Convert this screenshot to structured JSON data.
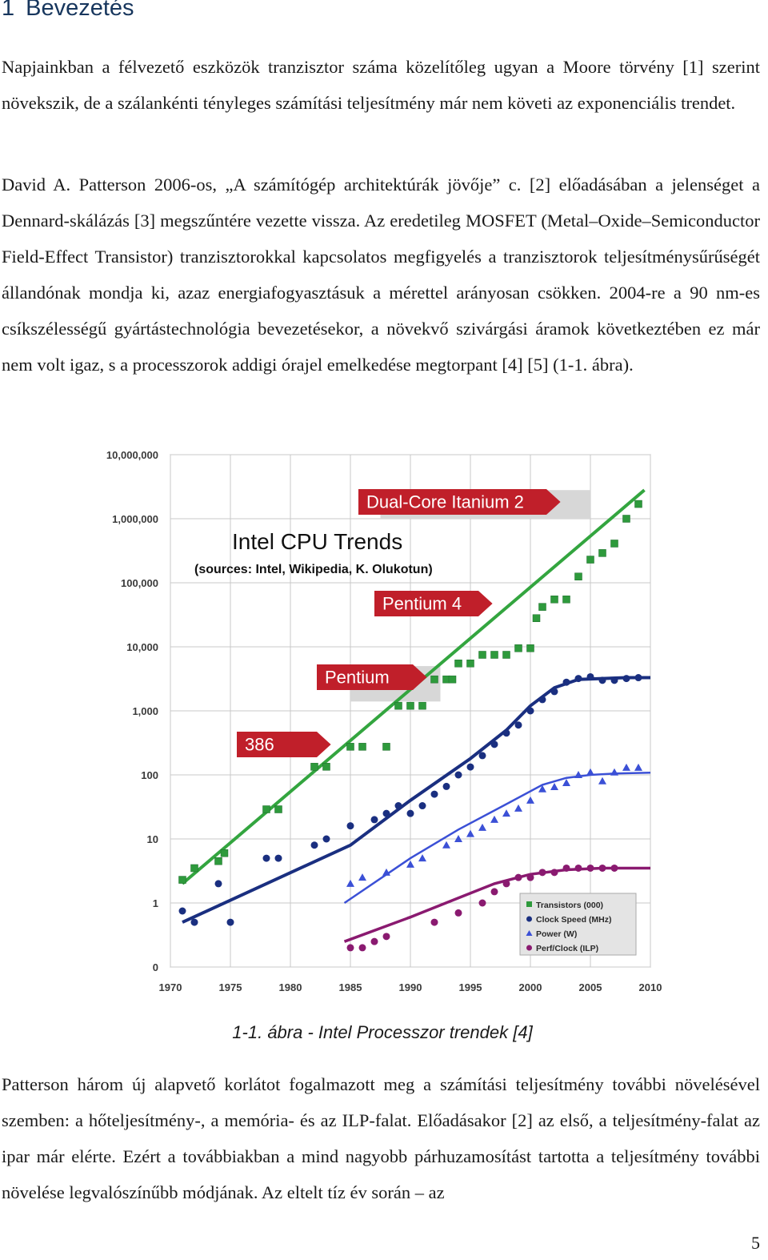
{
  "heading": {
    "number": "1",
    "title": "Bevezetés"
  },
  "paragraphs": {
    "p1": "Napjainkban a félvezető eszközök tranzisztor száma közelítőleg ugyan a Moore törvény [1] szerint növekszik, de a szálankénti tényleges számítási teljesítmény már nem követi az exponenciális trendet.",
    "p2": "David A. Patterson 2006-os, „A számítógép architektúrák jövője” c. [2] előadásában a jelenséget a Dennard-skálázás [3] megszűntére vezette vissza. Az eredetileg MOSFET (Metal–Oxide–Semiconductor Field-Effect Transistor) tranzisztorokkal kapcsolatos megfigyelés a tranzisztorok teljesítménysűrűségét állandónak mondja ki, azaz energiafogyasztásuk a mérettel arányosan csökken. 2004-re a 90 nm-es csíkszélességű gyártástechnológia bevezetésekor, a növekvő szivárgási áramok következtében ez már nem volt igaz, s a processzorok addigi órajel emelkedése megtorpant [4] [5] (1-1. ábra).",
    "p3": "Patterson három új alapvető korlátot fogalmazott meg a számítási teljesítmény további növelésével szemben: a hőteljesítmény-, a memória- és az ILP-falat. Előadásakor [2] az első, a teljesítmény-falat az ipar már elérte. Ezért a továbbiakban a mind nagyobb párhuzamosítást tartotta a teljesítmény további növelése legvalószínűbb módjának. Az eltelt tíz év során – az"
  },
  "caption": "1-1. ábra - Intel Processzor trendek [4]",
  "page_number": "5",
  "chart_data": {
    "type": "scatter",
    "title": "Intel CPU Trends",
    "subtitle": "(sources: Intel, Wikipedia, K. Olukotun)",
    "xlabel": "",
    "ylabel": "",
    "scale": "log",
    "xlim": [
      1970,
      2010
    ],
    "ylim": [
      0,
      10000000
    ],
    "x_ticks": [
      "1970",
      "1975",
      "1980",
      "1985",
      "1990",
      "1995",
      "2000",
      "2005",
      "2010"
    ],
    "y_ticks": [
      "0",
      "1",
      "10",
      "100",
      "1,000",
      "10,000",
      "100,000",
      "1,000,000",
      "10,000,000"
    ],
    "grid": true,
    "legend_position": "bottom-right",
    "annotations": [
      {
        "text": "386",
        "x": 1985
      },
      {
        "text": "Pentium",
        "x": 1993
      },
      {
        "text": "Pentium 4",
        "x": 2000
      },
      {
        "text": "Dual-Core Itanium 2",
        "x": 2006
      }
    ],
    "colors": {
      "transistors": "#2e9a3c",
      "transistors_fit": "#33a53f",
      "clock": "#1a2f80",
      "power": "#3b50d6",
      "perf": "#8a1a70",
      "label_red": "#c01f2a",
      "band_gray": "#d7d7d7"
    },
    "series": [
      {
        "name": "Transistors (000)",
        "marker": "square",
        "points": [
          [
            1971,
            2.3
          ],
          [
            1972,
            3.5
          ],
          [
            1974,
            4.5
          ],
          [
            1974.5,
            6
          ],
          [
            1978,
            29
          ],
          [
            1979,
            29
          ],
          [
            1982,
            134
          ],
          [
            1983,
            134
          ],
          [
            1985,
            275
          ],
          [
            1986,
            275
          ],
          [
            1988,
            275
          ],
          [
            1989,
            1200
          ],
          [
            1990,
            1200
          ],
          [
            1991,
            1200
          ],
          [
            1992,
            3100
          ],
          [
            1993,
            3100
          ],
          [
            1993.5,
            3100
          ],
          [
            1994,
            5500
          ],
          [
            1995,
            5500
          ],
          [
            1996,
            7500
          ],
          [
            1997,
            7500
          ],
          [
            1998,
            7500
          ],
          [
            1999,
            9500
          ],
          [
            2000,
            9500
          ],
          [
            2000.5,
            28000
          ],
          [
            2001,
            42000
          ],
          [
            2002,
            55000
          ],
          [
            2003,
            55000
          ],
          [
            2004,
            125000
          ],
          [
            2005,
            230000
          ],
          [
            2006,
            291000
          ],
          [
            2007,
            410000
          ],
          [
            2008,
            1000000
          ],
          [
            2009,
            1700000
          ]
        ]
      },
      {
        "name": "Clock Speed (MHz)",
        "marker": "circle",
        "points": [
          [
            1971,
            0.75
          ],
          [
            1972,
            0.5
          ],
          [
            1974,
            2
          ],
          [
            1975,
            0.5
          ],
          [
            1978,
            5
          ],
          [
            1979,
            5
          ],
          [
            1982,
            8
          ],
          [
            1983,
            10
          ],
          [
            1985,
            16
          ],
          [
            1987,
            20
          ],
          [
            1988,
            25
          ],
          [
            1989,
            33
          ],
          [
            1990,
            25
          ],
          [
            1991,
            33
          ],
          [
            1992,
            50
          ],
          [
            1993,
            66
          ],
          [
            1994,
            100
          ],
          [
            1995,
            133
          ],
          [
            1996,
            200
          ],
          [
            1997,
            300
          ],
          [
            1998,
            450
          ],
          [
            1999,
            600
          ],
          [
            2000,
            1000
          ],
          [
            2001,
            1500
          ],
          [
            2002,
            2000
          ],
          [
            2003,
            2800
          ],
          [
            2004,
            3200
          ],
          [
            2005,
            3400
          ],
          [
            2006,
            3000
          ],
          [
            2007,
            3000
          ],
          [
            2008,
            3200
          ],
          [
            2009,
            3300
          ]
        ]
      },
      {
        "name": "Power (W)",
        "marker": "triangle",
        "points": [
          [
            1985,
            2
          ],
          [
            1986,
            2.5
          ],
          [
            1988,
            3
          ],
          [
            1990,
            4
          ],
          [
            1991,
            5
          ],
          [
            1993,
            8
          ],
          [
            1994,
            10
          ],
          [
            1995,
            12
          ],
          [
            1996,
            15
          ],
          [
            1997,
            20
          ],
          [
            1998,
            25
          ],
          [
            1999,
            30
          ],
          [
            2000,
            40
          ],
          [
            2001,
            60
          ],
          [
            2002,
            65
          ],
          [
            2003,
            75
          ],
          [
            2004,
            100
          ],
          [
            2005,
            110
          ],
          [
            2006,
            80
          ],
          [
            2007,
            110
          ],
          [
            2008,
            130
          ],
          [
            2009,
            130
          ]
        ]
      },
      {
        "name": "Perf/Clock (ILP)",
        "marker": "circle",
        "points": [
          [
            1985,
            0.2
          ],
          [
            1986,
            0.2
          ],
          [
            1987,
            0.25
          ],
          [
            1988,
            0.3
          ],
          [
            1992,
            0.5
          ],
          [
            1994,
            0.7
          ],
          [
            1996,
            1
          ],
          [
            1997,
            1.5
          ],
          [
            1998,
            2
          ],
          [
            1999,
            2.5
          ],
          [
            2000,
            2.5
          ],
          [
            2001,
            3
          ],
          [
            2002,
            3
          ],
          [
            2003,
            3.5
          ],
          [
            2004,
            3.5
          ],
          [
            2005,
            3.5
          ],
          [
            2006,
            3.5
          ],
          [
            2007,
            3.5
          ]
        ]
      }
    ]
  }
}
